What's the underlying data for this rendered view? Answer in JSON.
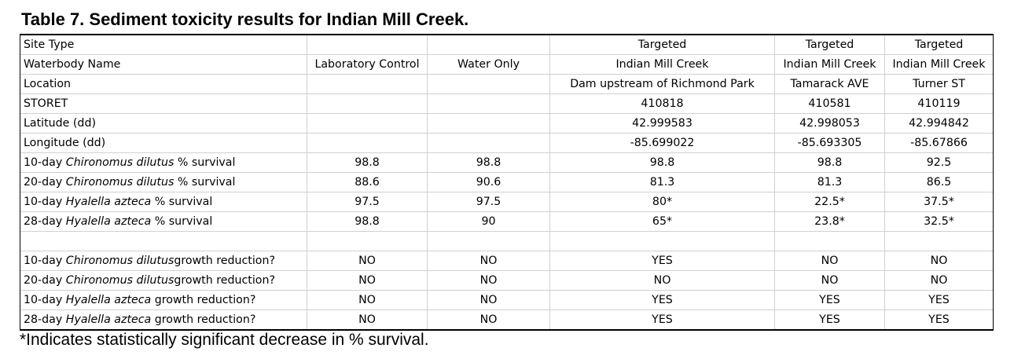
{
  "title": "Table 7. Sediment toxicity results for Indian Mill Creek.",
  "footnote": "*Indicates statistically significant decrease in % survival.",
  "table": {
    "rows": [
      {
        "label": [
          "Site Type"
        ],
        "cells": [
          "",
          "",
          "Targeted",
          "Targeted",
          "Targeted"
        ]
      },
      {
        "label": [
          "Waterbody Name"
        ],
        "cells": [
          "Laboratory Control",
          "Water Only",
          "Indian Mill Creek",
          "Indian Mill Creek",
          "Indian Mill Creek"
        ]
      },
      {
        "label": [
          "Location"
        ],
        "cells": [
          "",
          "",
          "Dam upstream of Richmond Park",
          "Tamarack AVE",
          "Turner ST"
        ]
      },
      {
        "label": [
          "STORET"
        ],
        "cells": [
          "",
          "",
          "410818",
          "410581",
          "410119"
        ]
      },
      {
        "label": [
          "Latitude (dd)"
        ],
        "cells": [
          "",
          "",
          "42.999583",
          "42.998053",
          "42.994842"
        ]
      },
      {
        "label": [
          "Longitude (dd)"
        ],
        "cells": [
          "",
          "",
          "-85.699022",
          "-85.693305",
          "-85.67866"
        ]
      },
      {
        "label": [
          "10-day ",
          "Chironomus dilutus",
          " % survival"
        ],
        "cells": [
          "98.8",
          "98.8",
          "98.8",
          "98.8",
          "92.5"
        ]
      },
      {
        "label": [
          "20-day ",
          "Chironomus dilutus",
          " % survival"
        ],
        "cells": [
          "88.6",
          "90.6",
          "81.3",
          "81.3",
          "86.5"
        ]
      },
      {
        "label": [
          "10-day ",
          "Hyalella azteca",
          " % survival"
        ],
        "cells": [
          "97.5",
          "97.5",
          "80*",
          "22.5*",
          "37.5*"
        ]
      },
      {
        "label": [
          "28-day ",
          "Hyalella azteca",
          " % survival"
        ],
        "cells": [
          "98.8",
          "90",
          "65*",
          "23.8*",
          "32.5*"
        ]
      },
      {
        "label": [
          ""
        ],
        "cells": [
          "",
          "",
          "",
          "",
          ""
        ]
      },
      {
        "label": [
          "10-day ",
          "Chironomus dilutus",
          "growth reduction?"
        ],
        "cells": [
          "NO",
          "NO",
          "YES",
          "NO",
          "NO"
        ]
      },
      {
        "label": [
          "20-day ",
          "Chironomus dilutus",
          "growth reduction?"
        ],
        "cells": [
          "NO",
          "NO",
          "NO",
          "NO",
          "NO"
        ]
      },
      {
        "label": [
          "10-day ",
          "Hyalella azteca",
          " growth reduction?"
        ],
        "cells": [
          "NO",
          "NO",
          "YES",
          "YES",
          "YES"
        ]
      },
      {
        "label": [
          "28-day ",
          "Hyalella azteca",
          " growth reduction?"
        ],
        "cells": [
          "NO",
          "NO",
          "YES",
          "YES",
          "YES"
        ]
      }
    ]
  }
}
